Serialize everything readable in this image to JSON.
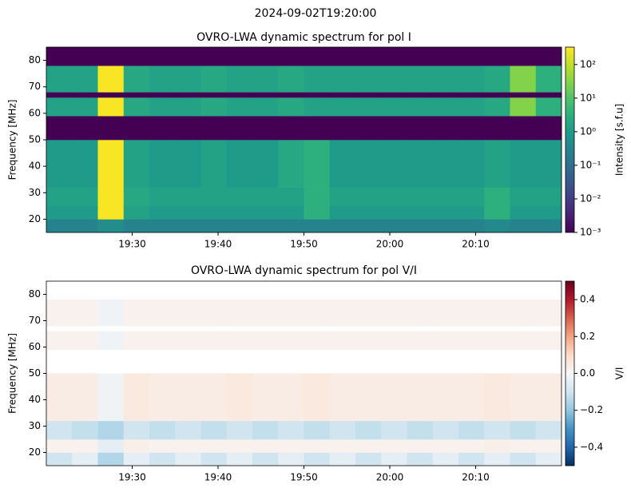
{
  "suptitle": "2024-09-02T19:20:00",
  "chart_data": [
    {
      "type": "heatmap",
      "title": "OVRO-LWA dynamic spectrum for pol I",
      "ylabel": "Frequency [MHz]",
      "xlim": [
        "19:20",
        "20:20"
      ],
      "xticks": [
        "19:30",
        "19:40",
        "19:50",
        "20:00",
        "20:10"
      ],
      "ylim": [
        15,
        85
      ],
      "yticks": [
        20,
        30,
        40,
        50,
        60,
        70,
        80
      ],
      "x": [
        "19:20",
        "19:23",
        "19:26",
        "19:29",
        "19:32",
        "19:35",
        "19:38",
        "19:41",
        "19:44",
        "19:47",
        "19:50",
        "19:53",
        "19:56",
        "19:59",
        "20:02",
        "20:05",
        "20:08",
        "20:11",
        "20:14",
        "20:17"
      ],
      "y_bins": [
        15,
        20,
        25,
        32,
        50,
        59,
        66,
        68,
        78,
        85
      ],
      "z": [
        [
          0.3,
          0.3,
          0.5,
          0.3,
          0.3,
          0.3,
          0.3,
          0.3,
          0.3,
          0.3,
          0.3,
          0.3,
          0.3,
          0.3,
          0.3,
          0.3,
          0.3,
          0.4,
          0.3,
          0.3
        ],
        [
          1,
          1,
          300,
          1.5,
          1,
          1,
          1,
          1,
          1,
          1,
          3,
          1,
          1,
          1,
          1,
          1,
          1,
          3,
          1,
          1
        ],
        [
          1.5,
          1.5,
          300,
          2,
          1.5,
          1.5,
          1.5,
          1.5,
          1.5,
          1.5,
          3,
          1.5,
          1.5,
          1.5,
          1.5,
          1.5,
          1.5,
          3,
          1.5,
          1.5
        ],
        [
          1,
          1,
          300,
          1.5,
          1,
          1,
          1.5,
          1,
          1,
          2,
          3,
          1,
          1,
          1,
          1,
          1,
          1,
          1.5,
          1,
          1
        ],
        [
          0.001,
          0.001,
          0.001,
          0.001,
          0.001,
          0.001,
          0.001,
          0.001,
          0.001,
          0.001,
          0.001,
          0.001,
          0.001,
          0.001,
          0.001,
          0.001,
          0.001,
          0.001,
          0.001,
          0.001
        ],
        [
          1.5,
          1.5,
          300,
          2,
          1.5,
          1.5,
          2,
          1.5,
          1.5,
          2,
          1.5,
          1.5,
          1.5,
          1.5,
          1.5,
          1.5,
          1.5,
          2,
          30,
          3
        ],
        [
          0.001,
          0.001,
          0.001,
          0.001,
          0.001,
          0.001,
          0.001,
          0.001,
          0.001,
          0.001,
          0.001,
          0.001,
          0.001,
          0.001,
          0.001,
          0.001,
          0.001,
          0.001,
          0.001,
          0.001
        ],
        [
          1.5,
          1.5,
          300,
          2,
          1.5,
          1.5,
          2,
          1.5,
          1.5,
          2,
          1.5,
          1.5,
          1.5,
          1.5,
          1.5,
          1.5,
          1.5,
          2,
          30,
          3
        ],
        [
          0.001,
          0.001,
          0.001,
          0.001,
          0.001,
          0.001,
          0.001,
          0.001,
          0.001,
          0.001,
          0.001,
          0.001,
          0.001,
          0.001,
          0.001,
          0.001,
          0.001,
          0.001,
          0.001,
          0.001
        ]
      ],
      "colormap": "viridis",
      "norm": "log",
      "clim": [
        0.001,
        330
      ],
      "colorbar_label": "Intensity [s.f.u]",
      "colorbar_ticks": [
        {
          "value": 0.001,
          "label": "10⁻³"
        },
        {
          "value": 0.01,
          "label": "10⁻²"
        },
        {
          "value": 0.1,
          "label": "10⁻¹"
        },
        {
          "value": 1,
          "label": "10⁰"
        },
        {
          "value": 10,
          "label": "10¹"
        },
        {
          "value": 100,
          "label": "10²"
        }
      ]
    },
    {
      "type": "heatmap",
      "title": "OVRO-LWA dynamic spectrum for pol V/I",
      "ylabel": "Frequency [MHz]",
      "xlim": [
        "19:20",
        "20:20"
      ],
      "xticks": [
        "19:30",
        "19:40",
        "19:50",
        "20:00",
        "20:10"
      ],
      "ylim": [
        15,
        85
      ],
      "yticks": [
        20,
        30,
        40,
        50,
        60,
        70,
        80
      ],
      "x": [
        "19:20",
        "19:23",
        "19:26",
        "19:29",
        "19:32",
        "19:35",
        "19:38",
        "19:41",
        "19:44",
        "19:47",
        "19:50",
        "19:53",
        "19:56",
        "19:59",
        "20:02",
        "20:05",
        "20:08",
        "20:11",
        "20:14",
        "20:17"
      ],
      "y_bins": [
        15,
        20,
        25,
        32,
        50,
        59,
        66,
        68,
        78,
        85
      ],
      "z": [
        [
          -0.1,
          -0.05,
          -0.15,
          -0.05,
          -0.1,
          -0.05,
          -0.1,
          -0.05,
          -0.1,
          -0.05,
          -0.1,
          -0.05,
          -0.1,
          -0.05,
          -0.1,
          -0.05,
          -0.1,
          -0.05,
          -0.1,
          -0.05
        ],
        [
          0.02,
          0.02,
          -0.05,
          0.03,
          0.02,
          0.02,
          0.02,
          0.02,
          0.02,
          0.02,
          0.02,
          0.02,
          0.02,
          0.02,
          0.02,
          0.02,
          0.02,
          0.03,
          0.02,
          0.02
        ],
        [
          -0.1,
          -0.12,
          -0.15,
          -0.1,
          -0.12,
          -0.1,
          -0.12,
          -0.1,
          -0.12,
          -0.1,
          -0.12,
          -0.1,
          -0.12,
          -0.1,
          -0.12,
          -0.1,
          -0.12,
          -0.1,
          -0.12,
          -0.1
        ],
        [
          0.04,
          0.04,
          -0.02,
          0.05,
          0.04,
          0.04,
          0.04,
          0.05,
          0.04,
          0.04,
          0.05,
          0.04,
          0.04,
          0.04,
          0.04,
          0.04,
          0.04,
          0.05,
          0.04,
          0.04
        ],
        [
          null,
          null,
          null,
          null,
          null,
          null,
          null,
          null,
          null,
          null,
          null,
          null,
          null,
          null,
          null,
          null,
          null,
          null,
          null,
          null
        ],
        [
          0.02,
          0.02,
          -0.02,
          0.02,
          0.02,
          0.02,
          0.02,
          0.02,
          0.02,
          0.02,
          0.02,
          0.02,
          0.02,
          0.02,
          0.02,
          0.02,
          0.02,
          0.02,
          0.02,
          0.02
        ],
        [
          null,
          null,
          null,
          null,
          null,
          null,
          null,
          null,
          null,
          null,
          null,
          null,
          null,
          null,
          null,
          null,
          null,
          null,
          null,
          null
        ],
        [
          0.02,
          0.02,
          -0.02,
          0.02,
          0.02,
          0.02,
          0.02,
          0.02,
          0.02,
          0.02,
          0.02,
          0.02,
          0.02,
          0.02,
          0.02,
          0.02,
          0.02,
          0.02,
          0.02,
          0.02
        ],
        [
          null,
          null,
          null,
          null,
          null,
          null,
          null,
          null,
          null,
          null,
          null,
          null,
          null,
          null,
          null,
          null,
          null,
          null,
          null,
          null
        ]
      ],
      "colormap": "RdBu_r",
      "norm": "linear",
      "clim": [
        -0.5,
        0.5
      ],
      "colorbar_label": "V/I",
      "colorbar_ticks": [
        0.4,
        0.2,
        {
          "value": 0,
          "label": "0.0"
        },
        {
          "value": -0.2,
          "label": "−0.2"
        },
        {
          "value": -0.4,
          "label": "−0.4"
        }
      ]
    }
  ]
}
